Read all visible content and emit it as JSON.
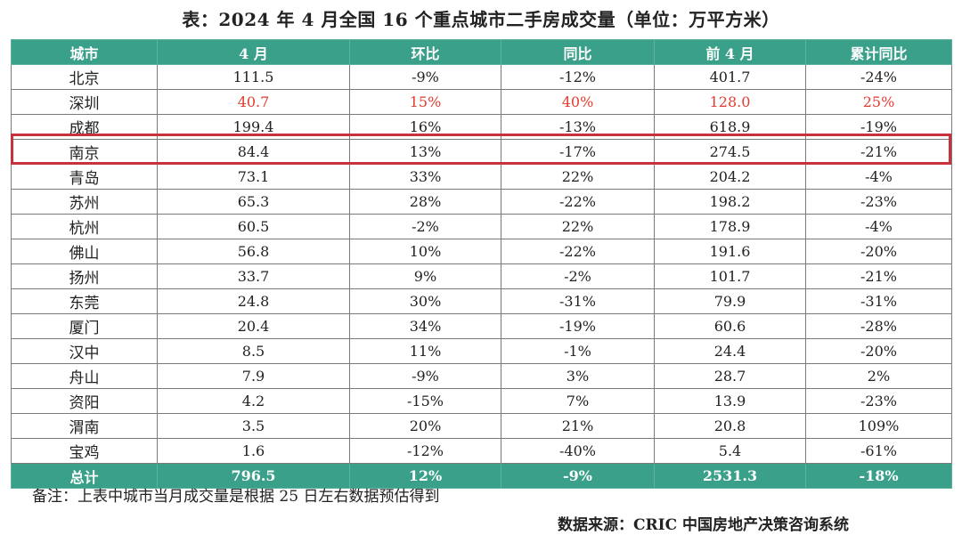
{
  "title": "表：2024 年 4 月全国 16 个重点城市二手房成交量（单位：万平方米）",
  "highlight_color": "#c8323a",
  "header_color": "#3aa08a",
  "accent_red": "#e23b2f",
  "chart_data": {
    "type": "table",
    "columns": [
      "城市",
      "4 月",
      "环比",
      "同比",
      "前 4 月",
      "累计同比"
    ],
    "rows": [
      [
        "北京",
        "111.5",
        "-9%",
        "-12%",
        "401.7",
        "-24%"
      ],
      [
        "深圳",
        "40.7",
        "15%",
        "40%",
        "128.0",
        "25%"
      ],
      [
        "成都",
        "199.4",
        "16%",
        "-13%",
        "618.9",
        "-19%"
      ],
      [
        "南京",
        "84.4",
        "13%",
        "-17%",
        "274.5",
        "-21%"
      ],
      [
        "青岛",
        "73.1",
        "33%",
        "22%",
        "204.2",
        "-4%"
      ],
      [
        "苏州",
        "65.3",
        "28%",
        "-22%",
        "198.2",
        "-23%"
      ],
      [
        "杭州",
        "60.5",
        "-2%",
        "22%",
        "178.9",
        "-4%"
      ],
      [
        "佛山",
        "56.8",
        "10%",
        "-22%",
        "191.6",
        "-20%"
      ],
      [
        "扬州",
        "33.7",
        "9%",
        "-2%",
        "101.7",
        "-21%"
      ],
      [
        "东莞",
        "24.8",
        "30%",
        "-31%",
        "79.9",
        "-31%"
      ],
      [
        "厦门",
        "20.4",
        "34%",
        "-19%",
        "60.6",
        "-28%"
      ],
      [
        "汉中",
        "8.5",
        "11%",
        "-1%",
        "24.4",
        "-20%"
      ],
      [
        "舟山",
        "7.9",
        "-9%",
        "3%",
        "28.7",
        "2%"
      ],
      [
        "资阳",
        "4.2",
        "-15%",
        "7%",
        "13.9",
        "-23%"
      ],
      [
        "渭南",
        "3.5",
        "20%",
        "21%",
        "20.8",
        "109%"
      ],
      [
        "宝鸡",
        "1.6",
        "-12%",
        "-40%",
        "5.4",
        "-61%"
      ]
    ],
    "total": [
      "总计",
      "796.5",
      "12%",
      "-9%",
      "2531.3",
      "-18%"
    ],
    "red_row": "深圳",
    "highlighted_row": "南京"
  },
  "footer": {
    "note": "备注：上表中城市当月成交量是根据 25 日左右数据预估得到",
    "source": "数据来源：CRIC 中国房地产决策咨询系统"
  }
}
